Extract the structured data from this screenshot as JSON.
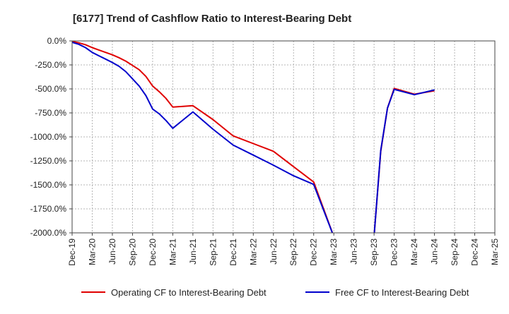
{
  "chart_data": {
    "type": "line",
    "title": "[6177]  Trend of Cashflow Ratio to Interest-Bearing Debt",
    "xlabel": "",
    "ylabel": "",
    "ylim": [
      -2000,
      0
    ],
    "y_ticks": [
      0,
      -250,
      -500,
      -750,
      -1000,
      -1250,
      -1500,
      -1750,
      -2000
    ],
    "y_tick_labels": [
      "0.0%",
      "-250.0%",
      "-500.0%",
      "-750.0%",
      "-1000.0%",
      "-1250.0%",
      "-1500.0%",
      "-1750.0%",
      "-2000.0%"
    ],
    "x_tick_labels": [
      "Dec-19",
      "Mar-20",
      "Jun-20",
      "Sep-20",
      "Dec-20",
      "Mar-21",
      "Jun-21",
      "Sep-21",
      "Dec-21",
      "Mar-22",
      "Jun-22",
      "Sep-22",
      "Dec-22",
      "Mar-23",
      "Jun-23",
      "Sep-23",
      "Dec-23",
      "Mar-24",
      "Jun-24",
      "Sep-24",
      "Dec-24",
      "Mar-25"
    ],
    "grid": true,
    "legend_position": "bottom",
    "series": [
      {
        "name": "Operating CF to Interest-Bearing Debt",
        "color": "#e00000",
        "points": [
          [
            "Dec-19",
            -5
          ],
          [
            "Jan-20",
            -20
          ],
          [
            "Feb-20",
            -40
          ],
          [
            "Mar-20",
            -70
          ],
          [
            "Apr-20",
            -95
          ],
          [
            "May-20",
            -120
          ],
          [
            "Jun-20",
            -145
          ],
          [
            "Jul-20",
            -175
          ],
          [
            "Aug-20",
            -210
          ],
          [
            "Sep-20",
            -255
          ],
          [
            "Oct-20",
            -300
          ],
          [
            "Nov-20",
            -370
          ],
          [
            "Dec-20",
            -470
          ],
          [
            "Jan-21",
            -530
          ],
          [
            "Feb-21",
            -600
          ],
          [
            "Mar-21",
            -690
          ],
          [
            "Jun-21",
            -675
          ],
          [
            "Sep-21",
            -820
          ],
          [
            "Dec-21",
            -990
          ],
          [
            "Mar-22",
            -1070
          ],
          [
            "Jun-22",
            -1150
          ],
          [
            "Sep-22",
            -1310
          ],
          [
            "Dec-22",
            -1470
          ],
          [
            "Mar-23",
            -2040
          ],
          [
            "Sep-23",
            -2040
          ],
          [
            "Oct-23",
            -1150
          ],
          [
            "Nov-23",
            -700
          ],
          [
            "Dec-23",
            -495
          ],
          [
            "Mar-24",
            -555
          ],
          [
            "Jun-24",
            -520
          ]
        ]
      },
      {
        "name": "Free CF to Interest-Bearing Debt",
        "color": "#0000cc",
        "points": [
          [
            "Dec-19",
            -15
          ],
          [
            "Jan-20",
            -35
          ],
          [
            "Feb-20",
            -70
          ],
          [
            "Mar-20",
            -120
          ],
          [
            "Apr-20",
            -155
          ],
          [
            "May-20",
            -190
          ],
          [
            "Jun-20",
            -225
          ],
          [
            "Jul-20",
            -265
          ],
          [
            "Aug-20",
            -320
          ],
          [
            "Sep-20",
            -395
          ],
          [
            "Oct-20",
            -470
          ],
          [
            "Nov-20",
            -570
          ],
          [
            "Dec-20",
            -710
          ],
          [
            "Jan-21",
            -760
          ],
          [
            "Feb-21",
            -830
          ],
          [
            "Mar-21",
            -910
          ],
          [
            "Jun-21",
            -740
          ],
          [
            "Sep-21",
            -920
          ],
          [
            "Dec-21",
            -1085
          ],
          [
            "Mar-22",
            -1190
          ],
          [
            "Jun-22",
            -1295
          ],
          [
            "Sep-22",
            -1405
          ],
          [
            "Dec-22",
            -1495
          ],
          [
            "Mar-23",
            -2040
          ],
          [
            "Sep-23",
            -2040
          ],
          [
            "Oct-23",
            -1140
          ],
          [
            "Nov-23",
            -700
          ],
          [
            "Dec-23",
            -505
          ],
          [
            "Mar-24",
            -560
          ],
          [
            "Jun-24",
            -510
          ]
        ]
      }
    ]
  }
}
